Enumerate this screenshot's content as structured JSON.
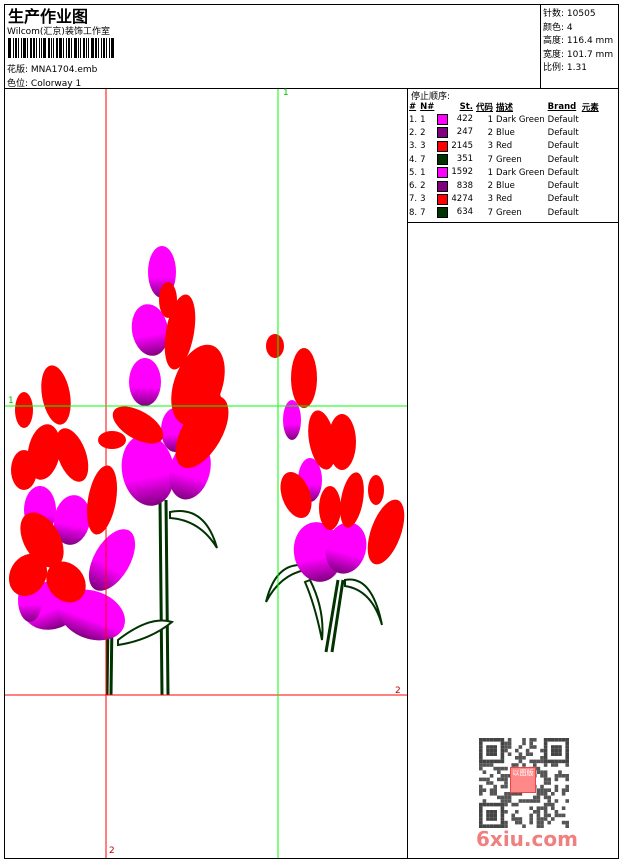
{
  "header": {
    "title": "生产作业图",
    "studio": "Wilcom(汇京)装饰工作室",
    "design_label": "花版:",
    "design_value": "MNA1704.emb",
    "colorway_label": "色位:",
    "colorway_value": "Colorway 1"
  },
  "info": [
    {
      "label": "针数:",
      "value": "10505"
    },
    {
      "label": "颜色:",
      "value": "4"
    },
    {
      "label": "高度:",
      "value": "116.4 mm"
    },
    {
      "label": "宽度:",
      "value": "101.7 mm"
    },
    {
      "label": "比例:",
      "value": "1.31"
    }
  ],
  "stop_sequence": {
    "title": "停止顺序:",
    "columns": [
      "#",
      "N#",
      "St.",
      "代码",
      "描述",
      "Brand",
      "元素"
    ],
    "rows": [
      {
        "idx": "1.",
        "n": "1",
        "color": "#ff00ff",
        "st": "422",
        "code": "1",
        "desc": "Dark Green",
        "brand": "Default"
      },
      {
        "idx": "2.",
        "n": "2",
        "color": "#800080",
        "st": "247",
        "code": "2",
        "desc": "Blue",
        "brand": "Default"
      },
      {
        "idx": "3.",
        "n": "3",
        "color": "#ff0000",
        "st": "2145",
        "code": "3",
        "desc": "Red",
        "brand": "Default"
      },
      {
        "idx": "4.",
        "n": "7",
        "color": "#003300",
        "st": "351",
        "code": "7",
        "desc": "Green",
        "brand": "Default"
      },
      {
        "idx": "5.",
        "n": "1",
        "color": "#ff00ff",
        "st": "1592",
        "code": "1",
        "desc": "Dark Green",
        "brand": "Default"
      },
      {
        "idx": "6.",
        "n": "2",
        "color": "#800080",
        "st": "838",
        "code": "2",
        "desc": "Blue",
        "brand": "Default"
      },
      {
        "idx": "7.",
        "n": "3",
        "color": "#ff0000",
        "st": "4274",
        "code": "3",
        "desc": "Red",
        "brand": "Default"
      },
      {
        "idx": "8.",
        "n": "7",
        "color": "#003300",
        "st": "634",
        "code": "7",
        "desc": "Green",
        "brand": "Default"
      }
    ]
  },
  "guides": {
    "green_label": "1",
    "red_label": "2"
  },
  "watermark": {
    "text": "6xiu.com",
    "seal_text": "以图版"
  },
  "colors": {
    "magenta": "#ff00ff",
    "purple": "#800080",
    "red": "#ff0000",
    "green": "#003300",
    "guide_green": "#00ff00",
    "guide_red": "#ff0000"
  }
}
